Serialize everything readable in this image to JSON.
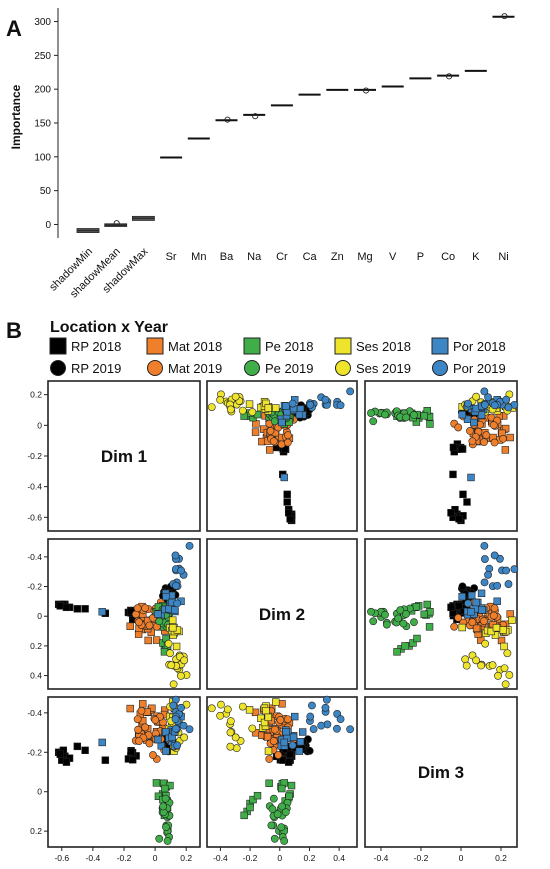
{
  "panel_a": {
    "letter": "A"
  },
  "panel_b": {
    "letter": "B"
  },
  "chart_data": [
    {
      "type": "box",
      "ylabel": "Importance",
      "ylim": [
        -20,
        320
      ],
      "yticks": [
        0,
        50,
        100,
        150,
        200,
        250,
        300
      ],
      "categories": [
        "shadowMin",
        "shadowMean",
        "shadowMax",
        "Sr",
        "Mn",
        "Ba",
        "Na",
        "Cr",
        "Ca",
        "Zn",
        "Mg",
        "V",
        "P",
        "Co",
        "K",
        "Ni"
      ],
      "values": [
        -9,
        -1,
        9,
        99,
        127,
        154,
        162,
        176,
        192,
        199,
        199,
        204,
        216,
        220,
        227,
        307
      ],
      "box_spread": [
        3,
        2,
        3,
        0.5,
        0.5,
        1,
        0.5,
        0.5,
        1,
        0.5,
        0.5,
        0.5,
        0.5,
        0.5,
        1,
        1
      ],
      "outliers": [
        {
          "category": "shadowMean",
          "value": 2
        },
        {
          "category": "Ba",
          "value": 155
        },
        {
          "category": "Na",
          "value": 160
        },
        {
          "category": "Mg",
          "value": 198
        },
        {
          "category": "Co",
          "value": 219
        },
        {
          "category": "Ni",
          "value": 308
        }
      ]
    },
    {
      "type": "scatter-matrix",
      "legend_title": "Location x Year",
      "legend": [
        {
          "label": "RP 2018",
          "shape": "square",
          "color": "#000000",
          "group": "RP18"
        },
        {
          "label": "Mat 2018",
          "shape": "square",
          "color": "#f07f2c",
          "group": "Mat18"
        },
        {
          "label": "Pe 2018",
          "shape": "square",
          "color": "#3fae49",
          "group": "Pe18"
        },
        {
          "label": "Ses 2018",
          "shape": "square",
          "color": "#eee42c",
          "group": "Ses18"
        },
        {
          "label": "Por 2018",
          "shape": "square",
          "color": "#3d86c6",
          "group": "Por18"
        },
        {
          "label": "RP 2019",
          "shape": "circle",
          "color": "#000000",
          "group": "RP19"
        },
        {
          "label": "Mat 2019",
          "shape": "circle",
          "color": "#f07f2c",
          "group": "Mat19"
        },
        {
          "label": "Pe 2019",
          "shape": "circle",
          "color": "#3fae49",
          "group": "Pe19"
        },
        {
          "label": "Ses 2019",
          "shape": "circle",
          "color": "#eee42c",
          "group": "Ses19"
        },
        {
          "label": "Por 2019",
          "shape": "circle",
          "color": "#3d86c6",
          "group": "Por19"
        }
      ],
      "dims": [
        "Dim 1",
        "Dim 2",
        "Dim 3"
      ],
      "dim_ranges": [
        [
          -0.65,
          0.25
        ],
        [
          -0.45,
          0.48
        ],
        [
          -0.45,
          0.25
        ]
      ],
      "ticks": {
        "dim1_x": [
          -0.6,
          -0.4,
          -0.2,
          0,
          0.2
        ],
        "dim2_x": [
          -0.4,
          -0.2,
          0,
          0.2,
          0.4
        ],
        "dim3_x": [
          -0.4,
          -0.2,
          0,
          0.2
        ],
        "dim3_left_y": [
          0.2,
          0,
          -0.2,
          -0.4
        ],
        "dim2_left_y": [
          0.4,
          0.2,
          0,
          -0.2,
          -0.4
        ],
        "dim1_right_y": [
          0.2,
          0,
          -0.2,
          -0.4,
          -0.6
        ]
      },
      "tick_labels": {
        "dim1": [
          "-0.6",
          "-0.4",
          "-0.2",
          "0",
          "0.2"
        ],
        "dim2": [
          "-0.4",
          "-0.2",
          "0",
          "0.2",
          "0.4"
        ],
        "dim3": [
          "-0.4",
          "-0.2",
          "0",
          "0.2"
        ],
        "dim1_right": [
          "0.2",
          "0",
          "-0.2",
          "-0.4",
          "-0.6"
        ]
      },
      "groups": {
        "RP18": {
          "center": [
            -0.15,
            0.02,
            -0.01
          ],
          "sd": [
            0.02,
            0.02,
            0.02
          ],
          "n": 8,
          "extra": [
            [
              -0.58,
              0.08,
              -0.02
            ],
            [
              -0.6,
              0.07,
              -0.04
            ],
            [
              -0.62,
              0.08,
              0.0
            ],
            [
              -0.5,
              0.05,
              0.03
            ],
            [
              -0.45,
              0.05,
              0.01
            ],
            [
              -0.55,
              0.06,
              -0.03
            ],
            [
              -0.59,
              0.08,
              0.01
            ],
            [
              -0.32,
              0.02,
              -0.04
            ],
            [
              -0.61,
              0.07,
              -0.01
            ],
            [
              -0.57,
              0.06,
              -0.05
            ]
          ]
        },
        "RP19": {
          "center": [
            0.09,
            0.14,
            0.04
          ],
          "sd": [
            0.02,
            0.04,
            0.02
          ],
          "n": 18
        },
        "Mat18": {
          "center": [
            -0.04,
            -0.06,
            0.14
          ],
          "sd": [
            0.07,
            0.05,
            0.05
          ],
          "n": 30
        },
        "Mat19": {
          "center": [
            -0.02,
            0.0,
            0.08
          ],
          "sd": [
            0.06,
            0.05,
            0.06
          ],
          "n": 22
        },
        "Pe18": {
          "center": [
            0.05,
            0.02,
            -0.2
          ],
          "sd": [
            0.03,
            0.04,
            0.04
          ],
          "n": 10,
          "extra": [
            [
              0.06,
              -0.2,
              -0.26
            ],
            [
              0.07,
              -0.22,
              -0.3
            ],
            [
              0.05,
              -0.18,
              -0.24
            ],
            [
              0.08,
              -0.2,
              -0.28
            ],
            [
              0.06,
              -0.24,
              -0.32
            ],
            [
              0.07,
              -0.15,
              -0.22
            ]
          ]
        },
        "Pe19": {
          "center": [
            0.07,
            0.0,
            -0.3
          ],
          "sd": [
            0.02,
            0.04,
            0.08
          ],
          "n": 20,
          "extra": [
            [
              0.08,
              0.03,
              -0.4
            ],
            [
              0.09,
              0.02,
              -0.43
            ],
            [
              0.08,
              0.03,
              -0.45
            ],
            [
              0.07,
              0.01,
              -0.38
            ]
          ]
        },
        "Ses18": {
          "center": [
            0.12,
            -0.1,
            0.18
          ],
          "sd": [
            0.02,
            0.05,
            0.05
          ],
          "n": 12
        },
        "Ses19": {
          "center": [
            0.15,
            -0.32,
            0.16
          ],
          "sd": [
            0.03,
            0.06,
            0.1
          ],
          "n": 18
        },
        "Por18": {
          "center": [
            0.1,
            0.05,
            0.07
          ],
          "sd": [
            0.04,
            0.05,
            0.04
          ],
          "n": 14,
          "extra": [
            [
              -0.34,
              0.03,
              0.05
            ]
          ]
        },
        "Por19": {
          "center": [
            0.16,
            0.3,
            0.18
          ],
          "sd": [
            0.03,
            0.1,
            0.05
          ],
          "n": 14
        }
      }
    }
  ]
}
